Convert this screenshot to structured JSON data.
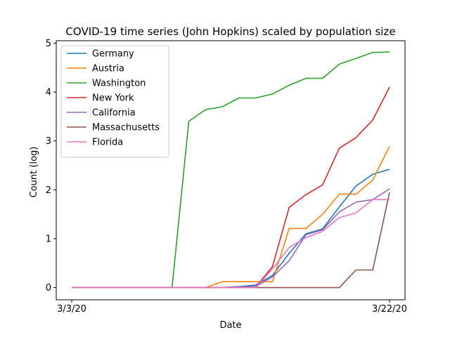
{
  "chart_data": {
    "type": "line",
    "title": "COVID-19 time series (John Hopkins) scaled by population size",
    "xlabel": "Date",
    "ylabel": "Count (log)",
    "x": [
      "3/3/20",
      "3/4/20",
      "3/5/20",
      "3/6/20",
      "3/7/20",
      "3/8/20",
      "3/9/20",
      "3/10/20",
      "3/11/20",
      "3/12/20",
      "3/13/20",
      "3/14/20",
      "3/15/20",
      "3/16/20",
      "3/17/20",
      "3/18/20",
      "3/19/20",
      "3/20/20",
      "3/21/20",
      "3/22/20"
    ],
    "x_ticks": [
      "3/3/20",
      "3/22/20"
    ],
    "y_ticks": [
      0,
      1,
      2,
      3,
      4,
      5
    ],
    "ylim": [
      -0.25,
      5.05
    ],
    "legend_position": "top-left",
    "grid": false,
    "series": [
      {
        "name": "Germany",
        "color": "#1f77b4",
        "values": [
          0,
          0,
          0,
          0,
          0,
          0,
          0,
          0,
          0,
          0,
          0.02,
          0.05,
          0.25,
          0.7,
          1.1,
          1.2,
          1.65,
          2.08,
          2.32,
          2.42
        ]
      },
      {
        "name": "Austria",
        "color": "#ff7f0e",
        "values": [
          0,
          0,
          0,
          0,
          0,
          0,
          0,
          0,
          0,
          0.12,
          0.12,
          0.12,
          0.12,
          1.21,
          1.21,
          1.5,
          1.91,
          1.91,
          2.2,
          2.89
        ]
      },
      {
        "name": "Washington",
        "color": "#2ca02c",
        "values": [
          0,
          0,
          0,
          0,
          0,
          0,
          0,
          3.4,
          3.64,
          3.7,
          3.88,
          3.88,
          3.96,
          4.14,
          4.28,
          4.28,
          4.57,
          4.69,
          4.81,
          4.82
        ]
      },
      {
        "name": "New York",
        "color": "#d62728",
        "values": [
          0,
          0,
          0,
          0,
          0,
          0,
          0,
          0,
          0,
          0,
          0.01,
          0.01,
          0.43,
          1.64,
          1.9,
          2.1,
          2.85,
          3.07,
          3.43,
          4.1
        ]
      },
      {
        "name": "California",
        "color": "#9467bd",
        "values": [
          0,
          0,
          0,
          0,
          0,
          0,
          0,
          0,
          0,
          0,
          0.02,
          0.02,
          0.22,
          0.55,
          1.08,
          1.18,
          1.55,
          1.75,
          1.8,
          2.02
        ]
      },
      {
        "name": "Massachusetts",
        "color": "#8c564b",
        "values": [
          0,
          0,
          0,
          0,
          0,
          0,
          0,
          0,
          0,
          0,
          0,
          0,
          0,
          0,
          0,
          0,
          0,
          0.36,
          0.36,
          1.95
        ]
      },
      {
        "name": "Florida",
        "color": "#e377c2",
        "values": [
          0,
          0,
          0,
          0,
          0,
          0,
          0,
          0,
          0,
          0,
          0,
          0,
          0.38,
          0.82,
          1.02,
          1.15,
          1.43,
          1.53,
          1.8,
          1.8
        ]
      }
    ]
  }
}
